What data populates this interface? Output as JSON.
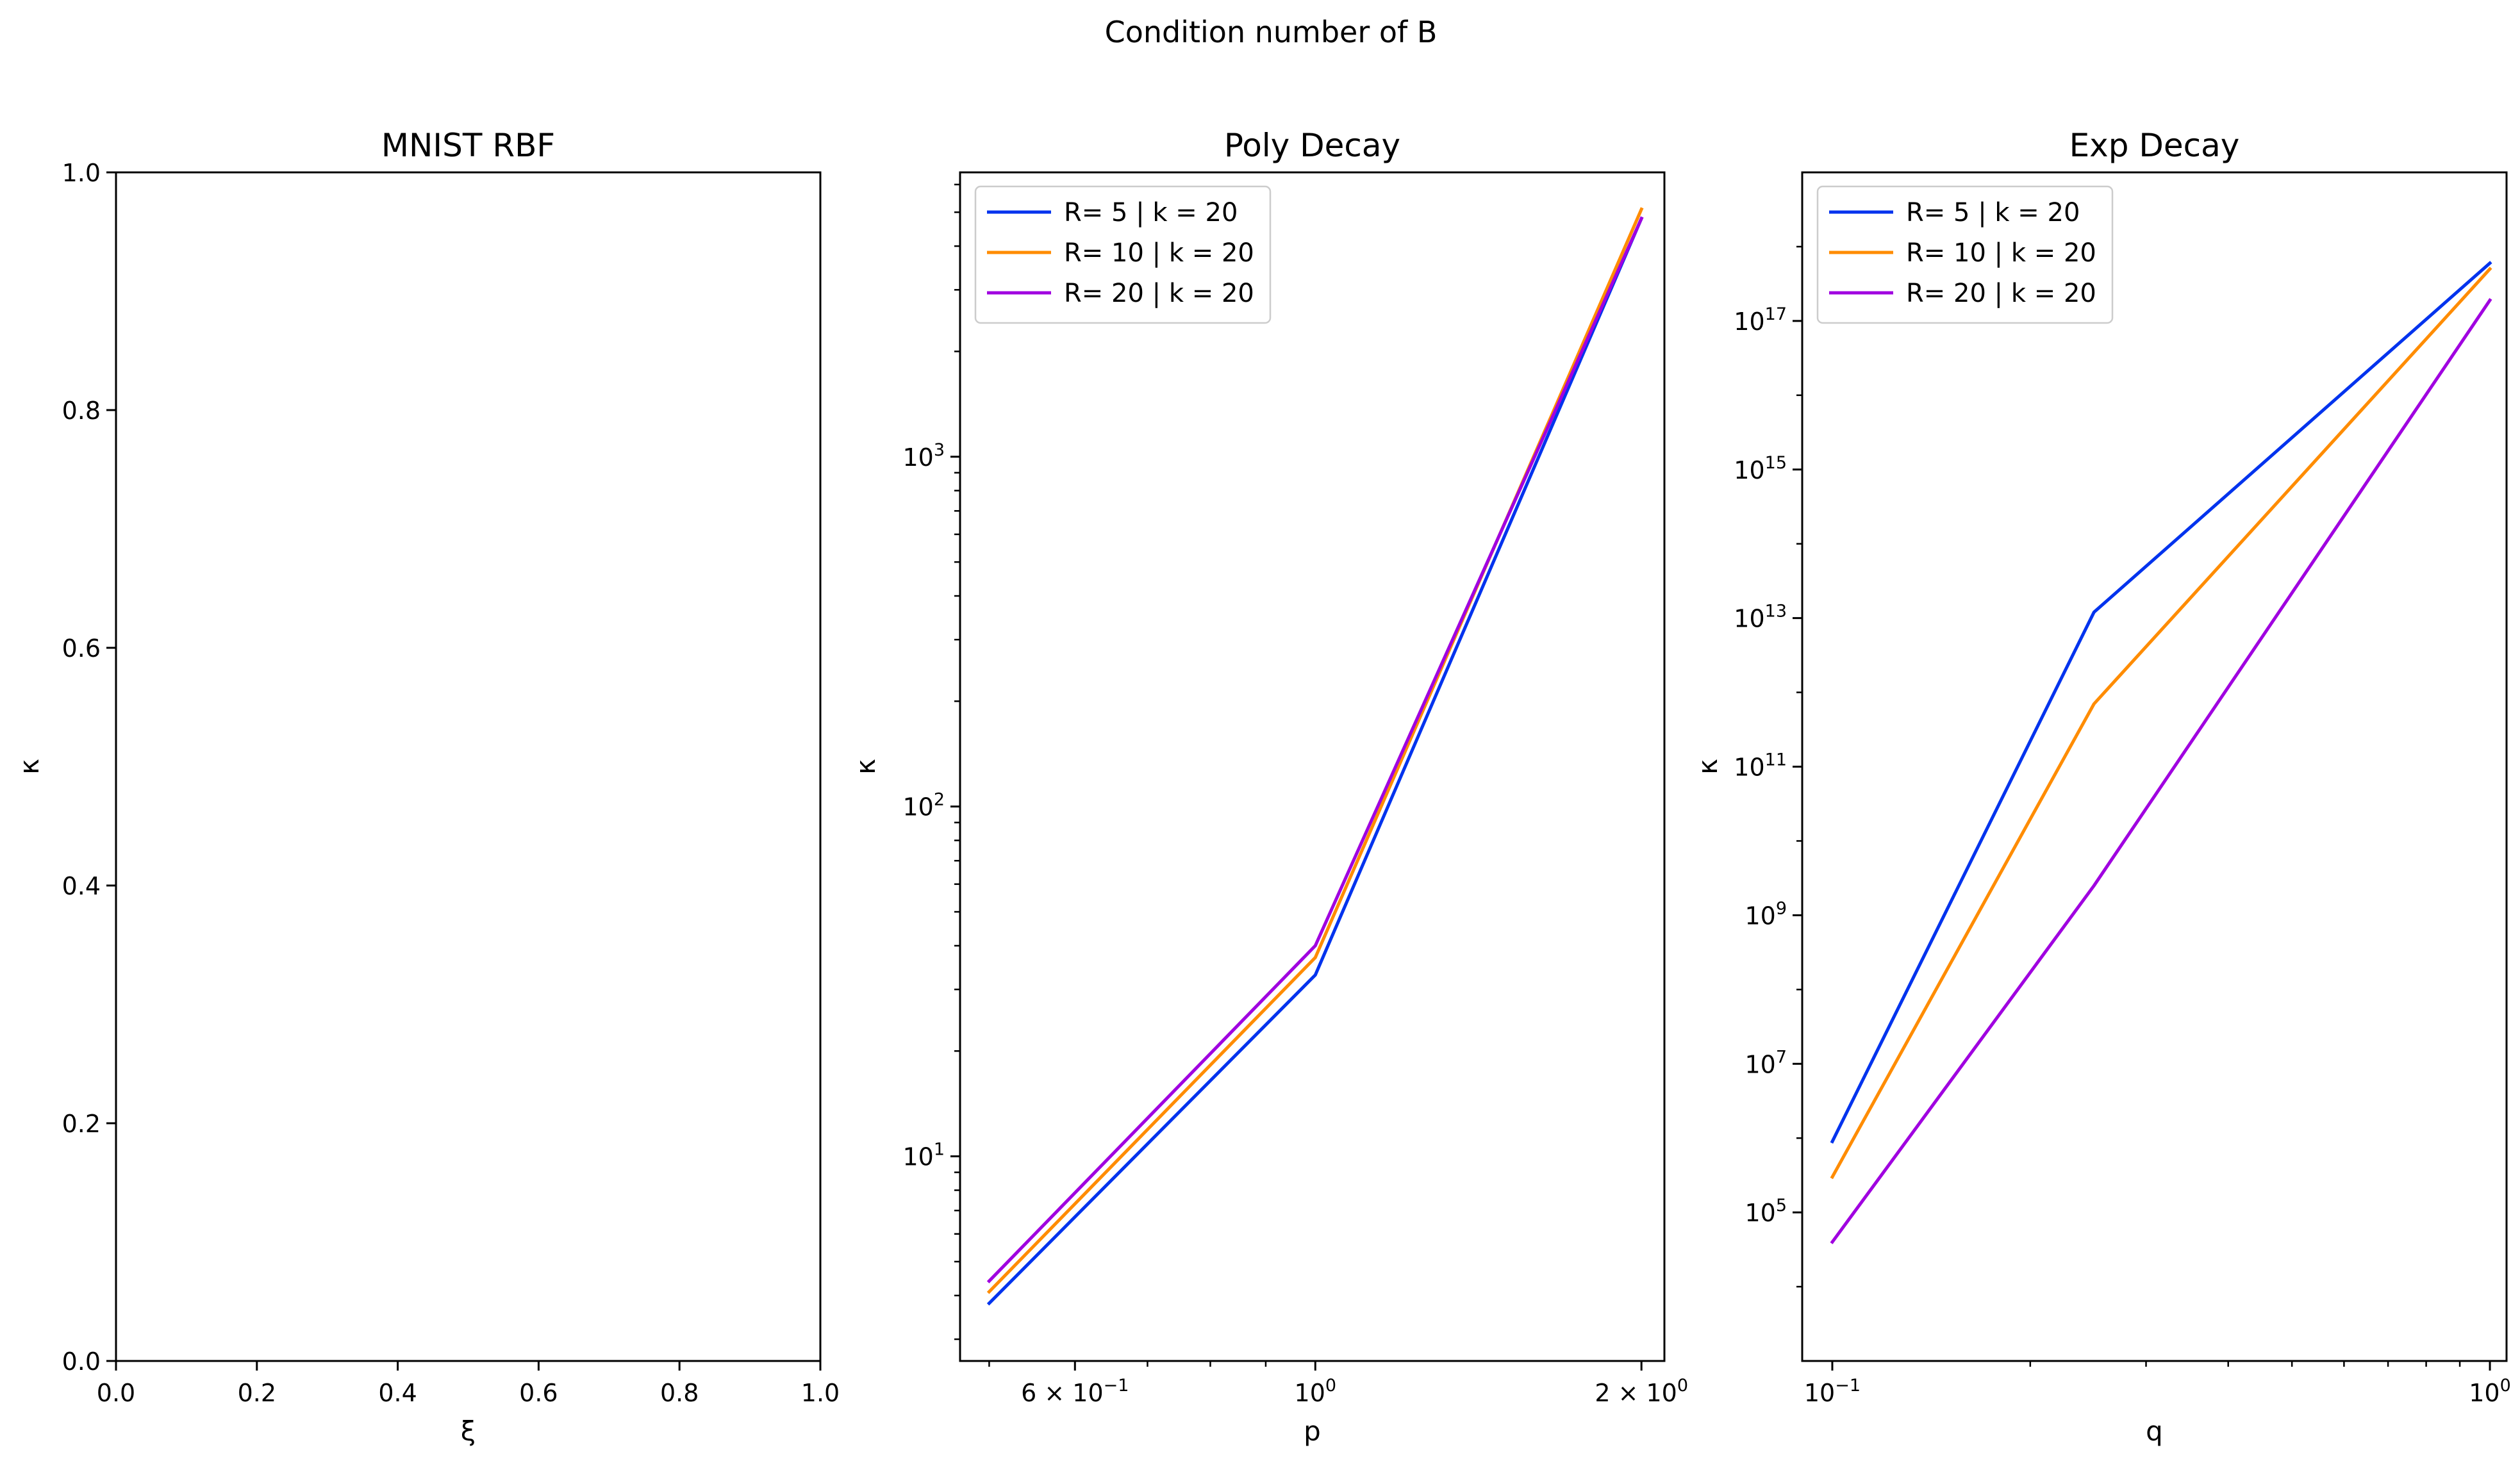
{
  "figure": {
    "suptitle": "Condition number of B"
  },
  "chart_data": [
    {
      "type": "line",
      "title": "MNIST RBF",
      "xlabel": "ξ",
      "ylabel": "κ",
      "xscale": "linear",
      "yscale": "linear",
      "xlim": [
        0.0,
        1.0
      ],
      "ylim": [
        0.0,
        1.0
      ],
      "xticks": [
        "0.0",
        "0.2",
        "0.4",
        "0.6",
        "0.8",
        "1.0"
      ],
      "yticks": [
        "0.0",
        "0.2",
        "0.4",
        "0.6",
        "0.8",
        "1.0"
      ],
      "series": [],
      "legend": null
    },
    {
      "type": "line",
      "title": "Poly Decay",
      "xlabel": "p",
      "ylabel": "κ",
      "xscale": "log",
      "yscale": "log",
      "xlim": [
        0.47,
        2.1
      ],
      "ylim": [
        2.6,
        6500
      ],
      "xticks": [
        {
          "value": 0.6,
          "label": "6 × 10^−1"
        },
        {
          "value": 1.0,
          "label": "10^0"
        },
        {
          "value": 2.0,
          "label": "2 × 10^0"
        }
      ],
      "yticks": [
        {
          "value": 10,
          "label": "10^1"
        },
        {
          "value": 100,
          "label": "10^2"
        },
        {
          "value": 1000,
          "label": "10^3"
        }
      ],
      "x": [
        0.5,
        1.0,
        2.0
      ],
      "series": [
        {
          "name": "R= 5 | k = 20",
          "color": "#0033ee",
          "values": [
            3.8,
            33,
            4800
          ]
        },
        {
          "name": "R= 10 | k = 20",
          "color": "#ff8c00",
          "values": [
            4.1,
            37,
            5100
          ]
        },
        {
          "name": "R= 20 | k = 20",
          "color": "#a000e0",
          "values": [
            4.4,
            40,
            4800
          ]
        }
      ],
      "legend": "top-left"
    },
    {
      "type": "line",
      "title": "Exp Decay",
      "xlabel": "q",
      "ylabel": "κ",
      "xscale": "log",
      "yscale": "log",
      "xlim": [
        0.09,
        1.06
      ],
      "ylim": [
        1000,
        1e+19
      ],
      "xticks": [
        {
          "value": 0.1,
          "label": "10^−1"
        },
        {
          "value": 1.0,
          "label": "10^0"
        }
      ],
      "yticks": [
        {
          "value": 100000.0,
          "label": "10^5"
        },
        {
          "value": 10000000.0,
          "label": "10^7"
        },
        {
          "value": 1000000000.0,
          "label": "10^9"
        },
        {
          "value": 100000000000.0,
          "label": "10^11"
        },
        {
          "value": 10000000000000.0,
          "label": "10^13"
        },
        {
          "value": 1000000000000000.0,
          "label": "10^15"
        },
        {
          "value": 1e+17,
          "label": "10^17"
        }
      ],
      "x": [
        0.1,
        0.25,
        1.0
      ],
      "series": [
        {
          "name": "R= 5 | k = 20",
          "color": "#0033ee",
          "values": [
            900000.0,
            12000000000000.0,
            6e+17
          ]
        },
        {
          "name": "R= 10 | k = 20",
          "color": "#ff8c00",
          "values": [
            300000.0,
            700000000000.0,
            5e+17
          ]
        },
        {
          "name": "R= 20 | k = 20",
          "color": "#a000e0",
          "values": [
            40000.0,
            2500000000.0,
            1.9e+17
          ]
        }
      ],
      "legend": "top-left"
    }
  ]
}
